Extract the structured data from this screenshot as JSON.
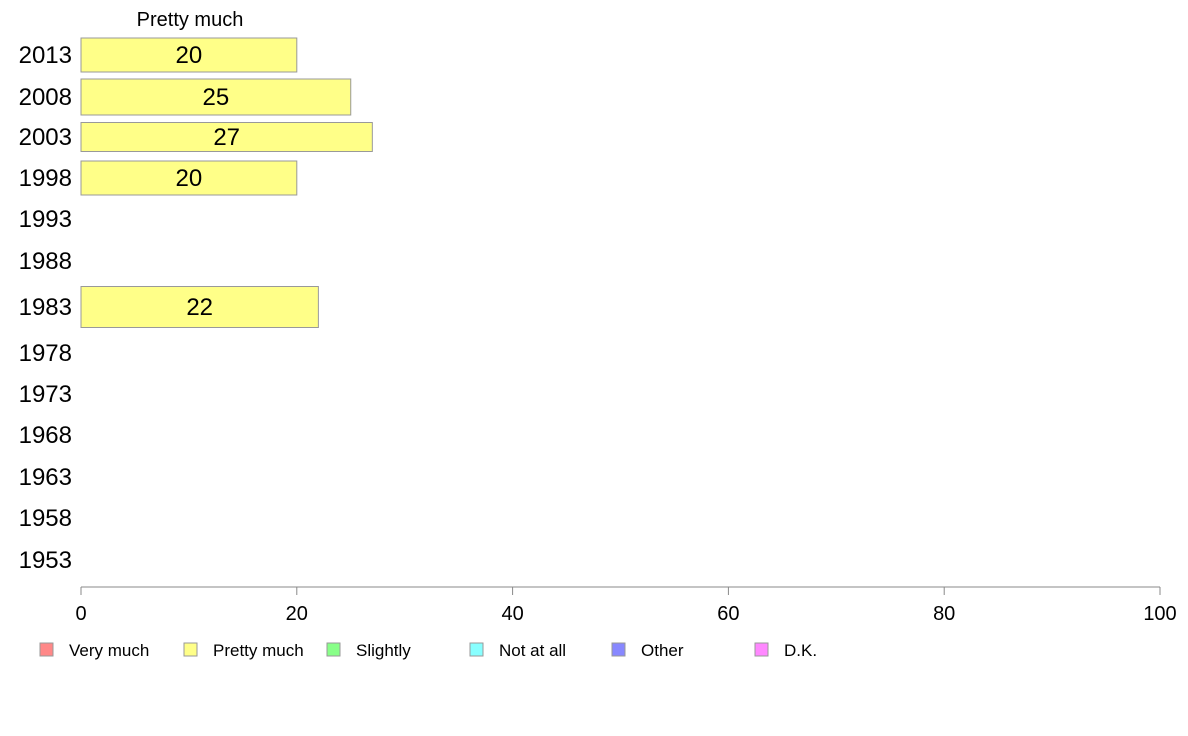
{
  "chart_data": {
    "type": "bar",
    "orientation": "horizontal",
    "header": "Pretty much",
    "categories": [
      "2013",
      "2008",
      "2003",
      "1998",
      "1993",
      "1988",
      "1983",
      "1978",
      "1973",
      "1968",
      "1963",
      "1958",
      "1953"
    ],
    "series": [
      {
        "name": "Pretty much",
        "color": "#ffff88",
        "values": [
          20,
          25,
          27,
          20,
          null,
          null,
          22,
          null,
          null,
          null,
          null,
          null,
          null
        ]
      }
    ],
    "xlim": [
      0,
      100
    ],
    "xticks": [
      "0",
      "20",
      "40",
      "60",
      "80",
      "100"
    ],
    "legend": {
      "placement": "bottom",
      "items": [
        {
          "label": "Very much",
          "color": "#ff8888"
        },
        {
          "label": "Pretty much",
          "color": "#ffff88"
        },
        {
          "label": "Slightly",
          "color": "#88ff88"
        },
        {
          "label": "Not at all",
          "color": "#88ffff"
        },
        {
          "label": "Other",
          "color": "#8888ff"
        },
        {
          "label": "D.K.",
          "color": "#ff88ff"
        }
      ]
    }
  }
}
